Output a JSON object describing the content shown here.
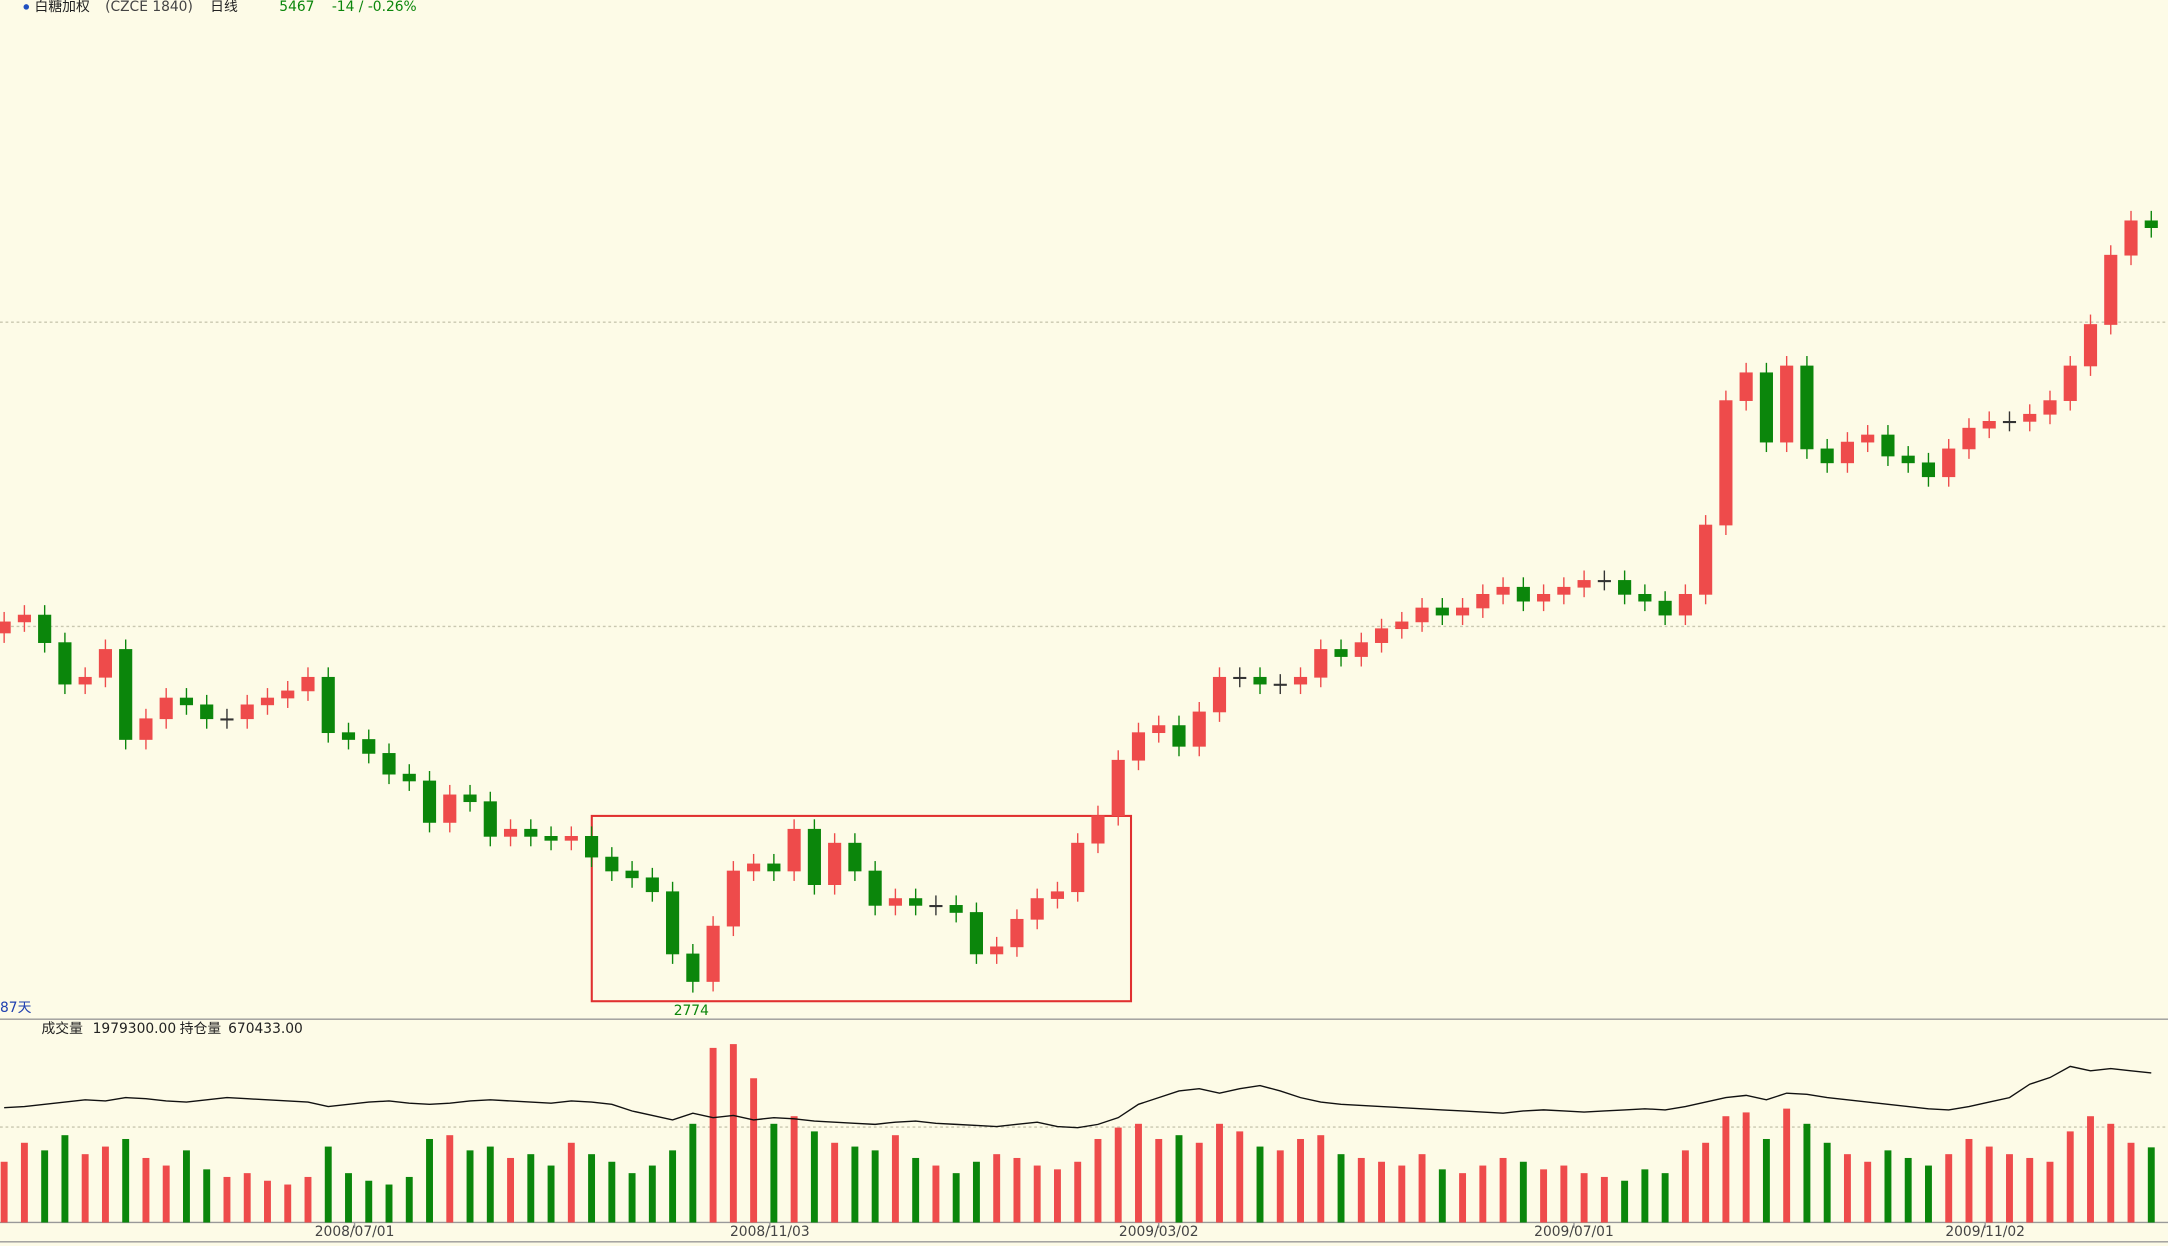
{
  "chart_data": {
    "type": "candlestick",
    "title": "白糖加权",
    "subtitle": "(CZCE 1840)",
    "period": "日线",
    "last_price": 5467,
    "change": "-14 / -0.26%",
    "up_color": "#ee4b4b",
    "down_color": "#0b860b",
    "ylim": [
      2690,
      6210
    ],
    "open": [
      4040,
      4079,
      4103,
      4006,
      3860,
      3884,
      3982,
      3665,
      3738,
      3811,
      3787,
      3738,
      3738,
      3787,
      3811,
      3836,
      3884,
      3689,
      3665,
      3616,
      3543,
      3519,
      3373,
      3470,
      3446,
      3324,
      3349,
      3324,
      3310,
      3324,
      3251,
      3202,
      3178,
      3129,
      2910,
      2813,
      3008,
      3202,
      3227,
      3202,
      3349,
      3154,
      3300,
      3202,
      3081,
      3105,
      3081,
      3081,
      3056,
      2910,
      2935,
      3032,
      3105,
      3129,
      3300,
      3397,
      3592,
      3689,
      3714,
      3641,
      3762,
      3884,
      3884,
      3860,
      3860,
      3884,
      3982,
      3957,
      4006,
      4055,
      4079,
      4128,
      4103,
      4128,
      4176,
      4201,
      4152,
      4176,
      4201,
      4225,
      4225,
      4176,
      4152,
      4103,
      4176,
      4420,
      4858,
      4956,
      4712,
      4980,
      4688,
      4639,
      4712,
      4737,
      4663,
      4639,
      4590,
      4688,
      4761,
      4785,
      4785,
      4810,
      4858,
      4980,
      5126,
      5370,
      5491
    ],
    "high": [
      4114,
      4138,
      4138,
      4041,
      3919,
      4017,
      4017,
      3773,
      3846,
      3846,
      3822,
      3773,
      3822,
      3846,
      3871,
      3919,
      3919,
      3724,
      3700,
      3651,
      3578,
      3554,
      3505,
      3505,
      3481,
      3384,
      3384,
      3359,
      3359,
      3359,
      3286,
      3237,
      3213,
      3164,
      2945,
      3043,
      3237,
      3262,
      3262,
      3384,
      3384,
      3335,
      3335,
      3237,
      3140,
      3140,
      3116,
      3116,
      3091,
      2970,
      3067,
      3140,
      3164,
      3335,
      3432,
      3627,
      3724,
      3749,
      3749,
      3797,
      3919,
      3919,
      3919,
      3895,
      3919,
      4017,
      4017,
      4041,
      4090,
      4114,
      4163,
      4163,
      4163,
      4211,
      4236,
      4236,
      4211,
      4236,
      4260,
      4260,
      4260,
      4211,
      4187,
      4211,
      4455,
      4893,
      4991,
      4991,
      5015,
      5015,
      4723,
      4747,
      4772,
      4772,
      4698,
      4674,
      4723,
      4796,
      4820,
      4820,
      4845,
      4893,
      5015,
      5161,
      5405,
      5526,
      5526
    ],
    "low": [
      4005,
      4044,
      3971,
      3825,
      3825,
      3849,
      3630,
      3630,
      3703,
      3752,
      3703,
      3703,
      3703,
      3752,
      3776,
      3801,
      3654,
      3630,
      3581,
      3508,
      3484,
      3338,
      3338,
      3411,
      3289,
      3289,
      3289,
      3275,
      3275,
      3216,
      3167,
      3143,
      3094,
      2875,
      2774,
      2778,
      2973,
      3167,
      3167,
      3167,
      3119,
      3119,
      3167,
      3046,
      3046,
      3046,
      3046,
      3021,
      2875,
      2875,
      2900,
      2997,
      3070,
      3094,
      3265,
      3362,
      3557,
      3654,
      3606,
      3606,
      3727,
      3849,
      3825,
      3825,
      3825,
      3849,
      3922,
      3922,
      3971,
      4020,
      4044,
      4068,
      4068,
      4093,
      4141,
      4117,
      4117,
      4141,
      4166,
      4190,
      4141,
      4117,
      4068,
      4068,
      4141,
      4385,
      4823,
      4677,
      4677,
      4653,
      4604,
      4604,
      4677,
      4628,
      4604,
      4555,
      4555,
      4653,
      4726,
      4750,
      4750,
      4775,
      4823,
      4945,
      5091,
      5335,
      5432
    ],
    "close": [
      4079,
      4103,
      4006,
      3860,
      3884,
      3982,
      3665,
      3738,
      3811,
      3787,
      3738,
      3738,
      3787,
      3811,
      3836,
      3884,
      3689,
      3665,
      3616,
      3543,
      3519,
      3373,
      3470,
      3446,
      3324,
      3349,
      3324,
      3310,
      3324,
      3251,
      3202,
      3178,
      3129,
      2910,
      2813,
      3008,
      3202,
      3227,
      3202,
      3349,
      3154,
      3300,
      3202,
      3081,
      3105,
      3081,
      3081,
      3056,
      2910,
      2935,
      3032,
      3105,
      3129,
      3300,
      3397,
      3592,
      3689,
      3714,
      3641,
      3762,
      3884,
      3884,
      3860,
      3860,
      3884,
      3982,
      3957,
      4006,
      4055,
      4079,
      4128,
      4103,
      4128,
      4176,
      4201,
      4152,
      4176,
      4201,
      4225,
      4225,
      4176,
      4152,
      4103,
      4176,
      4420,
      4858,
      4956,
      4712,
      4980,
      4688,
      4639,
      4712,
      4737,
      4663,
      4639,
      4590,
      4688,
      4761,
      4785,
      4785,
      4810,
      4858,
      4980,
      5126,
      5370,
      5491,
      5467
    ],
    "low_label": 2774,
    "day_count_label": "87天",
    "xticks": [
      {
        "value": 17.3,
        "label": "2008/07/01"
      },
      {
        "value": 37.8,
        "label": "2008/11/03"
      },
      {
        "value": 57,
        "label": "2009/03/02"
      },
      {
        "value": 77.5,
        "label": "2009/07/01"
      },
      {
        "value": 97.8,
        "label": "2009/11/02"
      }
    ],
    "volume": {
      "type": "bar",
      "label": "成交量",
      "value_label": "1979300.00",
      "ylim": [
        0,
        4700000
      ],
      "values": [
        1600000,
        2100000,
        1900000,
        2300000,
        1800000,
        2000000,
        2200000,
        1700000,
        1500000,
        1900000,
        1400000,
        1200000,
        1300000,
        1100000,
        1000000,
        1200000,
        2000000,
        1300000,
        1100000,
        1000000,
        1200000,
        2200000,
        2300000,
        1900000,
        2000000,
        1700000,
        1800000,
        1500000,
        2100000,
        1800000,
        1600000,
        1300000,
        1500000,
        1900000,
        2600000,
        4600000,
        4700000,
        3800000,
        2600000,
        2800000,
        2400000,
        2100000,
        2000000,
        1900000,
        2300000,
        1700000,
        1500000,
        1300000,
        1600000,
        1800000,
        1700000,
        1500000,
        1400000,
        1600000,
        2200000,
        2500000,
        2600000,
        2200000,
        2300000,
        2100000,
        2600000,
        2400000,
        2000000,
        1900000,
        2200000,
        2300000,
        1800000,
        1700000,
        1600000,
        1500000,
        1800000,
        1400000,
        1300000,
        1500000,
        1700000,
        1600000,
        1400000,
        1500000,
        1300000,
        1200000,
        1100000,
        1400000,
        1300000,
        1900000,
        2100000,
        2800000,
        2900000,
        2200000,
        3000000,
        2600000,
        2100000,
        1800000,
        1600000,
        1900000,
        1700000,
        1500000,
        1800000,
        2200000,
        2000000,
        1800000,
        1700000,
        1600000,
        2400000,
        2800000,
        2600000,
        2100000,
        1979300
      ]
    },
    "open_interest": {
      "type": "line",
      "label": "持仓量",
      "value_label": "670433.00",
      "axis": "y2",
      "color": "#111111",
      "y2lim": [
        0,
        800000
      ],
      "values": [
        515000,
        520000,
        530000,
        540000,
        550000,
        545000,
        560000,
        555000,
        545000,
        540000,
        550000,
        560000,
        555000,
        550000,
        545000,
        540000,
        520000,
        530000,
        540000,
        545000,
        535000,
        530000,
        535000,
        545000,
        550000,
        545000,
        540000,
        535000,
        545000,
        540000,
        530000,
        500000,
        480000,
        460000,
        490000,
        470000,
        480000,
        460000,
        470000,
        465000,
        455000,
        450000,
        445000,
        440000,
        450000,
        455000,
        445000,
        440000,
        435000,
        430000,
        440000,
        450000,
        430000,
        425000,
        440000,
        470000,
        530000,
        560000,
        590000,
        600000,
        580000,
        600000,
        614000,
        590000,
        560000,
        540000,
        530000,
        525000,
        520000,
        515000,
        510000,
        505000,
        500000,
        495000,
        490000,
        500000,
        505000,
        500000,
        495000,
        500000,
        505000,
        510000,
        505000,
        520000,
        540000,
        560000,
        570000,
        550000,
        580000,
        575000,
        560000,
        550000,
        540000,
        530000,
        520000,
        510000,
        505000,
        520000,
        540000,
        560000,
        620000,
        650000,
        700000,
        680000,
        690000,
        680000,
        670433
      ]
    }
  }
}
